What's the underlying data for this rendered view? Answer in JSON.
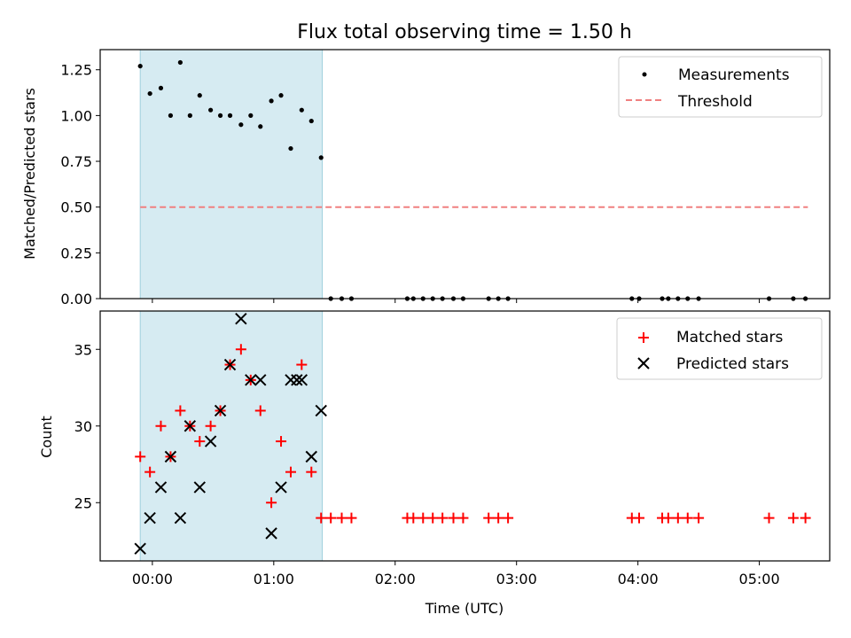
{
  "chart_data": [
    {
      "type": "scatter",
      "title": "Flux total observing time = 1.50 h",
      "xlabel": "",
      "ylabel": "Matched/Predicted stars",
      "xlim": [
        -0.43,
        5.58
      ],
      "ylim": [
        0,
        1.36
      ],
      "yticks": [
        0.0,
        0.25,
        0.5,
        0.75,
        1.0,
        1.25
      ],
      "ytick_labels": [
        "0.00",
        "0.25",
        "0.50",
        "0.75",
        "1.00",
        "1.25"
      ],
      "highlight_span": [
        -0.1,
        1.4
      ],
      "threshold": {
        "value": 0.5,
        "x_from": -0.1,
        "x_to": 5.4,
        "color": "#f08080"
      },
      "legend": {
        "position": "top-right",
        "entries": [
          "Measurements",
          "Threshold"
        ]
      },
      "series": [
        {
          "name": "Measurements",
          "color": "#000000",
          "x": [
            -0.1,
            -0.02,
            0.07,
            0.15,
            0.23,
            0.31,
            0.39,
            0.48,
            0.56,
            0.64,
            0.73,
            0.81,
            0.89,
            0.98,
            1.06,
            1.14,
            1.23,
            1.31,
            1.39,
            1.47,
            1.56,
            1.64,
            2.1,
            2.15,
            2.23,
            2.31,
            2.39,
            2.48,
            2.56,
            2.77,
            2.85,
            2.93,
            3.95,
            4.01,
            4.2,
            4.25,
            4.33,
            4.41,
            4.5,
            5.08,
            5.28,
            5.38
          ],
          "values": [
            1.27,
            1.12,
            1.15,
            1.0,
            1.29,
            1.0,
            1.11,
            1.03,
            1.0,
            1.0,
            0.95,
            1.0,
            0.94,
            1.08,
            1.11,
            0.82,
            1.03,
            0.97,
            0.77,
            0,
            0,
            0,
            0,
            0,
            0,
            0,
            0,
            0,
            0,
            0,
            0,
            0,
            0,
            0,
            0,
            0,
            0,
            0,
            0,
            0,
            0,
            0
          ]
        }
      ]
    },
    {
      "type": "scatter",
      "title": "",
      "xlabel": "Time (UTC)",
      "ylabel": "Count",
      "xlim": [
        -0.43,
        5.58
      ],
      "ylim": [
        21.2,
        37.5
      ],
      "yticks": [
        25,
        30,
        35
      ],
      "ytick_labels": [
        "25",
        "30",
        "35"
      ],
      "xticks": [
        0,
        1,
        2,
        3,
        4,
        5
      ],
      "xtick_labels": [
        "00:00",
        "01:00",
        "02:00",
        "03:00",
        "04:00",
        "05:00"
      ],
      "highlight_span": [
        -0.1,
        1.4
      ],
      "legend": {
        "position": "top-right",
        "entries": [
          "Matched stars",
          "Predicted stars"
        ]
      },
      "series": [
        {
          "name": "Matched stars",
          "marker": "plus",
          "color": "#ff0000",
          "x": [
            -0.1,
            -0.02,
            0.07,
            0.15,
            0.23,
            0.31,
            0.39,
            0.48,
            0.56,
            0.64,
            0.73,
            0.81,
            0.89,
            0.98,
            1.06,
            1.14,
            1.23,
            1.31,
            1.39,
            1.47,
            1.56,
            1.64,
            2.1,
            2.15,
            2.23,
            2.31,
            2.39,
            2.48,
            2.56,
            2.77,
            2.85,
            2.93,
            3.95,
            4.01,
            4.2,
            4.25,
            4.33,
            4.41,
            4.5,
            5.08,
            5.28,
            5.38
          ],
          "values": [
            28,
            27,
            30,
            28,
            31,
            30,
            29,
            30,
            31,
            34,
            35,
            33,
            31,
            25,
            29,
            27,
            34,
            27,
            24,
            24,
            24,
            24,
            24,
            24,
            24,
            24,
            24,
            24,
            24,
            24,
            24,
            24,
            24,
            24,
            24,
            24,
            24,
            24,
            24,
            24,
            24,
            24
          ]
        },
        {
          "name": "Predicted stars",
          "marker": "x",
          "color": "#000000",
          "x": [
            -0.1,
            -0.02,
            0.07,
            0.15,
            0.23,
            0.31,
            0.39,
            0.48,
            0.56,
            0.64,
            0.73,
            0.81,
            0.89,
            0.98,
            1.06,
            1.14,
            1.19,
            1.23,
            1.31,
            1.39
          ],
          "values": [
            22,
            24,
            26,
            28,
            24,
            30,
            26,
            29,
            31,
            34,
            37,
            33,
            33,
            23,
            26,
            33,
            33,
            33,
            28,
            31
          ]
        }
      ]
    }
  ]
}
